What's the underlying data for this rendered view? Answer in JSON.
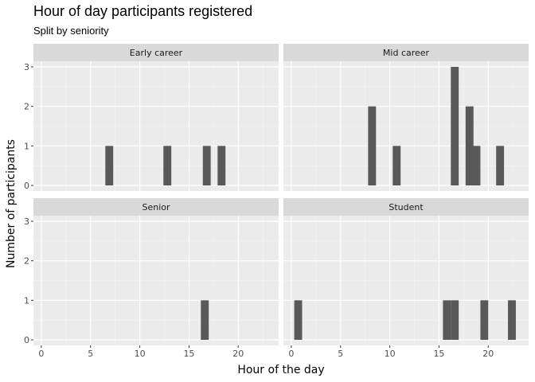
{
  "chart_data": {
    "type": "bar",
    "title": "Hour of day participants registered",
    "subtitle": "Split by seniority",
    "xlabel": "Hour of the day",
    "ylabel": "Number of participants",
    "xlim": [
      -0.8,
      24.1
    ],
    "ylim": [
      0,
      3
    ],
    "x_ticks": [
      0,
      5,
      10,
      15,
      20
    ],
    "y_ticks": [
      0,
      1,
      2,
      3
    ],
    "bin_width": 0.8,
    "grid": true,
    "panels": [
      {
        "name": "Early career",
        "bars": [
          {
            "x": 6.9,
            "count": 1
          },
          {
            "x": 12.8,
            "count": 1
          },
          {
            "x": 16.8,
            "count": 1
          },
          {
            "x": 18.3,
            "count": 1
          }
        ]
      },
      {
        "name": "Mid career",
        "bars": [
          {
            "x": 8.2,
            "count": 2
          },
          {
            "x": 10.7,
            "count": 1
          },
          {
            "x": 16.6,
            "count": 3
          },
          {
            "x": 18.1,
            "count": 2
          },
          {
            "x": 18.8,
            "count": 1
          },
          {
            "x": 21.2,
            "count": 1
          }
        ]
      },
      {
        "name": "Senior",
        "bars": [
          {
            "x": 16.6,
            "count": 1
          }
        ]
      },
      {
        "name": "Student",
        "bars": [
          {
            "x": 0.7,
            "count": 1
          },
          {
            "x": 15.8,
            "count": 1
          },
          {
            "x": 16.6,
            "count": 1
          },
          {
            "x": 19.6,
            "count": 1
          },
          {
            "x": 22.4,
            "count": 1
          }
        ]
      }
    ]
  }
}
